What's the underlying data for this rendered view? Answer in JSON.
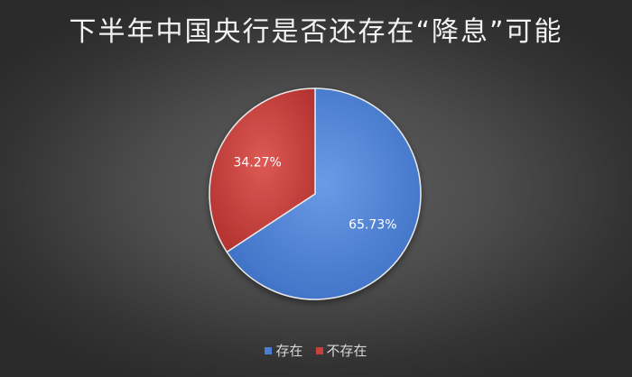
{
  "chart_data": {
    "type": "pie",
    "title": "下半年中国央行是否还存在“降息”可能",
    "categories": [
      "存在",
      "不存在"
    ],
    "values": [
      65.73,
      34.27
    ],
    "data_labels": [
      "65.73%",
      "34.27%"
    ],
    "colors": [
      "#4a7fd4",
      "#c8403c"
    ],
    "legend_position": "bottom"
  }
}
